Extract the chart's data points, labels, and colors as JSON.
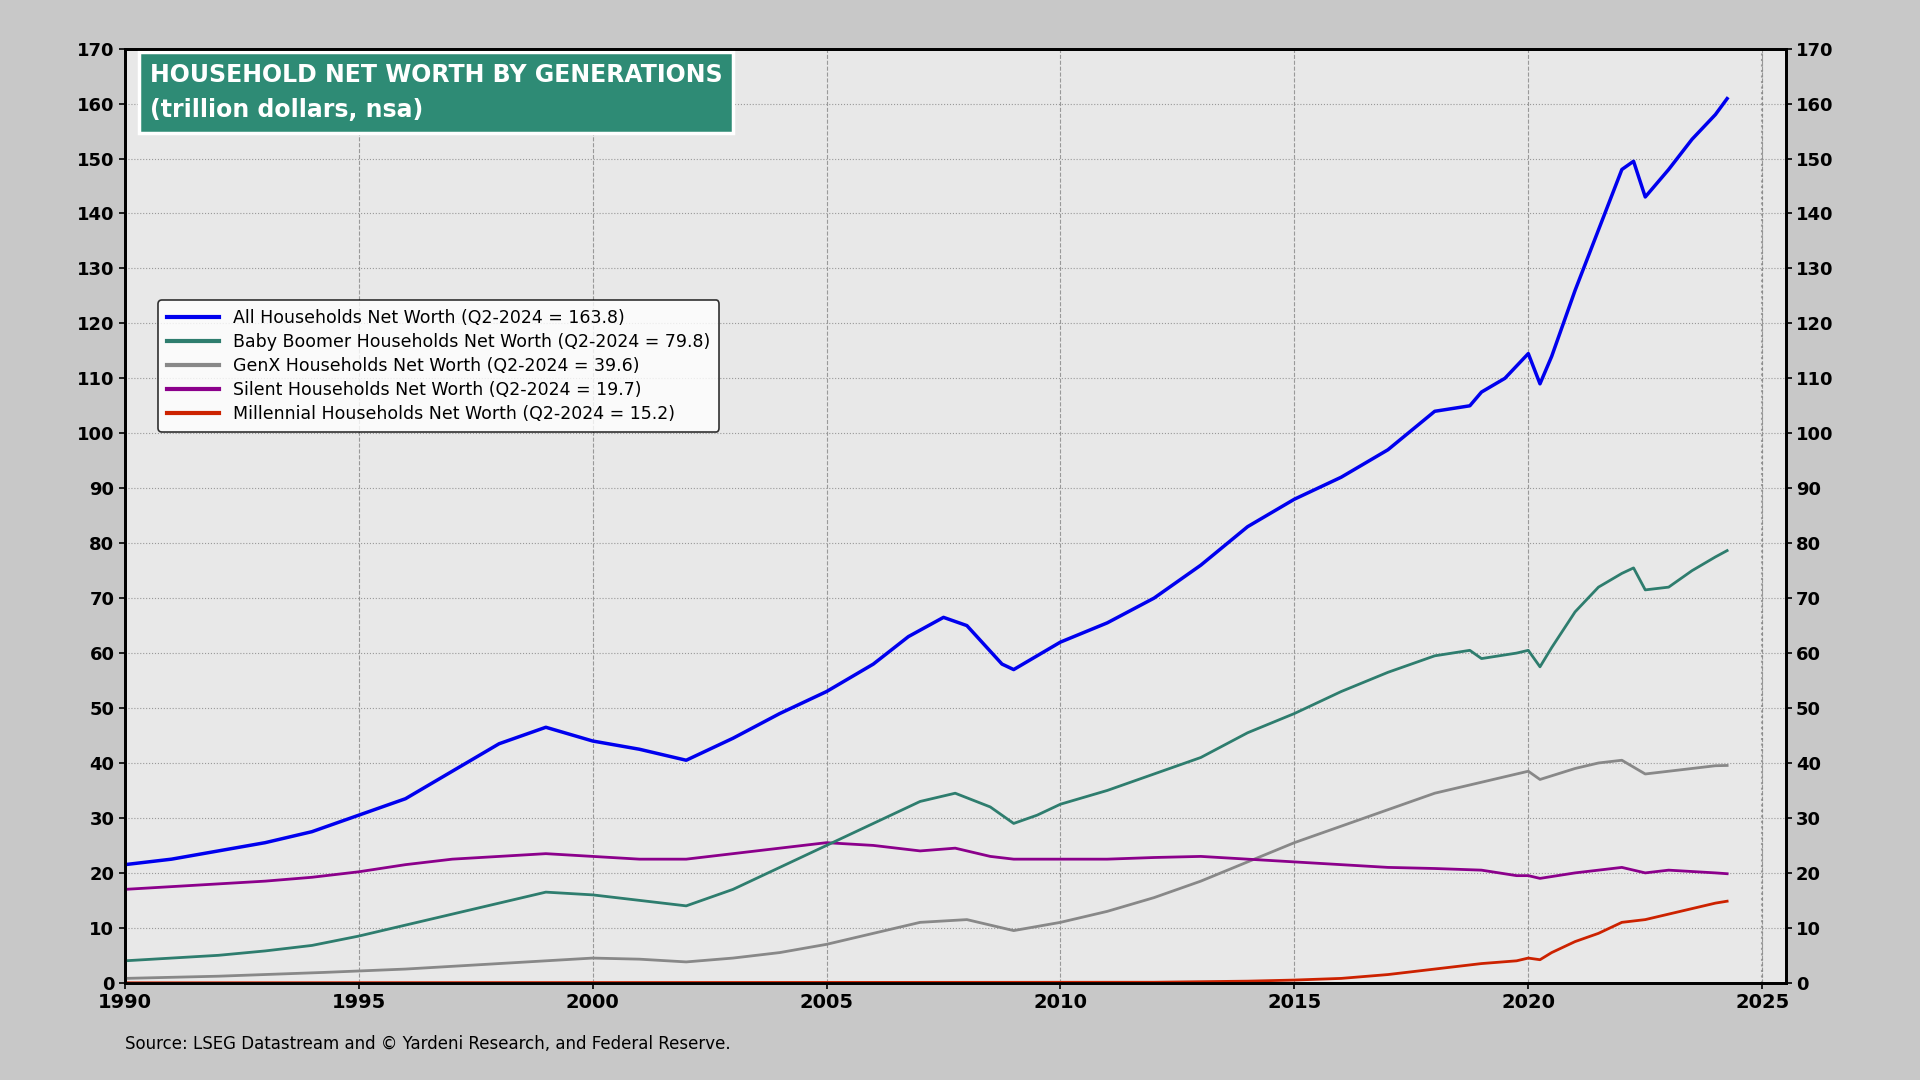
{
  "title_line1": "HOUSEHOLD NET WORTH BY GENERATIONS",
  "title_line2": "(trillion dollars, nsa)",
  "title_bg_color": "#2e8b75",
  "source_text": "Source: LSEG Datastream and © Yardeni Research, and Federal Reserve.",
  "ylim": [
    0,
    170
  ],
  "yticks": [
    0,
    10,
    20,
    30,
    40,
    50,
    60,
    70,
    80,
    90,
    100,
    110,
    120,
    130,
    140,
    150,
    160,
    170
  ],
  "xticks": [
    1990,
    1995,
    2000,
    2005,
    2010,
    2015,
    2020,
    2025
  ],
  "fig_bg_color": "#c8c8c8",
  "plot_bg_color": "#e8e8e8",
  "series": {
    "all_households": {
      "label": "All Households Net Worth (Q2-2024 = 163.8)",
      "color": "#0000ee",
      "linewidth": 2.5
    },
    "baby_boomer": {
      "label": "Baby Boomer Households Net Worth (Q2-2024 = 79.8)",
      "color": "#2e7d6e",
      "linewidth": 2.0
    },
    "genx": {
      "label": "GenX Households Net Worth (Q2-2024 = 39.6)",
      "color": "#888888",
      "linewidth": 2.0
    },
    "silent": {
      "label": "Silent Households Net Worth (Q2-2024 = 19.7)",
      "color": "#8b008b",
      "linewidth": 2.0
    },
    "millennial": {
      "label": "Millennial Households Net Worth (Q2-2024 = 15.2)",
      "color": "#cc2200",
      "linewidth": 2.0
    }
  }
}
